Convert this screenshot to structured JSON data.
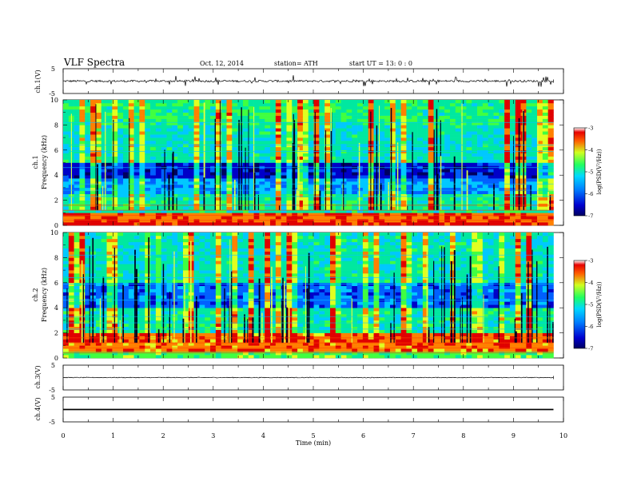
{
  "header": {
    "title": "VLF  Spectra",
    "date": "Oct. 12, 2014",
    "station": "station= ATH",
    "start": "start  UT  =   13: 0  : 0"
  },
  "chart_data": [
    {
      "id": "ch1",
      "type": "line",
      "ylabel": "ch.1(V)",
      "ylim": [
        -5,
        5
      ],
      "yticks": [
        5,
        -5
      ],
      "baseline_v": 0.0,
      "noise_level_v": 0.4,
      "spike_level_v": 2.2
    },
    {
      "id": "ch1-spec",
      "type": "heatmap",
      "ylabel": [
        "ch.1",
        "Frequency  (kHz)"
      ],
      "ylim": [
        0,
        10
      ],
      "yticks": [
        0,
        2,
        4,
        6,
        8,
        10
      ],
      "colorbar": {
        "label": "log(PSD(V²/Hz))",
        "range": [
          -7,
          -3
        ],
        "ticks": [
          -3,
          -4,
          -5,
          -6,
          -7
        ]
      },
      "levels_by_band_khz": [
        {
          "from": 0.0,
          "to": 0.25,
          "log_psd": -3.2
        },
        {
          "from": 0.25,
          "to": 1.0,
          "log_psd": -3.5
        },
        {
          "from": 1.0,
          "to": 2.4,
          "log_psd": -5.0
        },
        {
          "from": 2.4,
          "to": 3.6,
          "log_psd": -5.6
        },
        {
          "from": 3.6,
          "to": 5.0,
          "log_psd": -6.3
        },
        {
          "from": 5.0,
          "to": 8.0,
          "log_psd": -5.1
        },
        {
          "from": 8.0,
          "to": 10.0,
          "log_psd": -4.9
        }
      ]
    },
    {
      "id": "ch2-spec",
      "type": "heatmap",
      "ylabel": [
        "ch.2",
        "Frequency  (kHz)"
      ],
      "ylim": [
        0,
        10
      ],
      "yticks": [
        0,
        2,
        4,
        6,
        8,
        10
      ],
      "colorbar": {
        "label": "log(PSD(V²/Hz))",
        "range": [
          -7,
          -3
        ],
        "ticks": [
          -3,
          -4,
          -5,
          -6,
          -7
        ]
      },
      "levels_by_band_khz": [
        {
          "from": 0.0,
          "to": 0.3,
          "log_psd": -4.6
        },
        {
          "from": 0.3,
          "to": 1.8,
          "log_psd": -3.6
        },
        {
          "from": 1.8,
          "to": 4.0,
          "log_psd": -5.0
        },
        {
          "from": 4.0,
          "to": 6.0,
          "log_psd": -5.9
        },
        {
          "from": 6.0,
          "to": 10.0,
          "log_psd": -5.1
        }
      ]
    },
    {
      "id": "ch3",
      "type": "line",
      "ylabel": "ch.3(V)",
      "ylim": [
        -5,
        5
      ],
      "yticks": [
        5,
        -5
      ],
      "baseline_v": 0.0,
      "noise_level_v": 0.15
    },
    {
      "id": "ch4",
      "type": "line",
      "ylabel": "ch.4(V)",
      "ylim": [
        -5,
        5
      ],
      "yticks": [
        5,
        -5
      ],
      "baseline_v": 0.0,
      "band_width_v": 0.55
    }
  ],
  "xaxis": {
    "label": "Time  (min)",
    "range": [
      0,
      10
    ],
    "data_end_min": 9.8,
    "ticks": [
      "0",
      "1",
      "2",
      "3",
      "4",
      "5",
      "6",
      "7",
      "8",
      "9",
      "10"
    ]
  },
  "colors": {
    "heat_ramp": [
      "#000060",
      "#0000c8",
      "#0060ff",
      "#00c8ff",
      "#00e8a0",
      "#40ff40",
      "#e0ff20",
      "#ff8000",
      "#e00000",
      "#ffffff"
    ]
  }
}
